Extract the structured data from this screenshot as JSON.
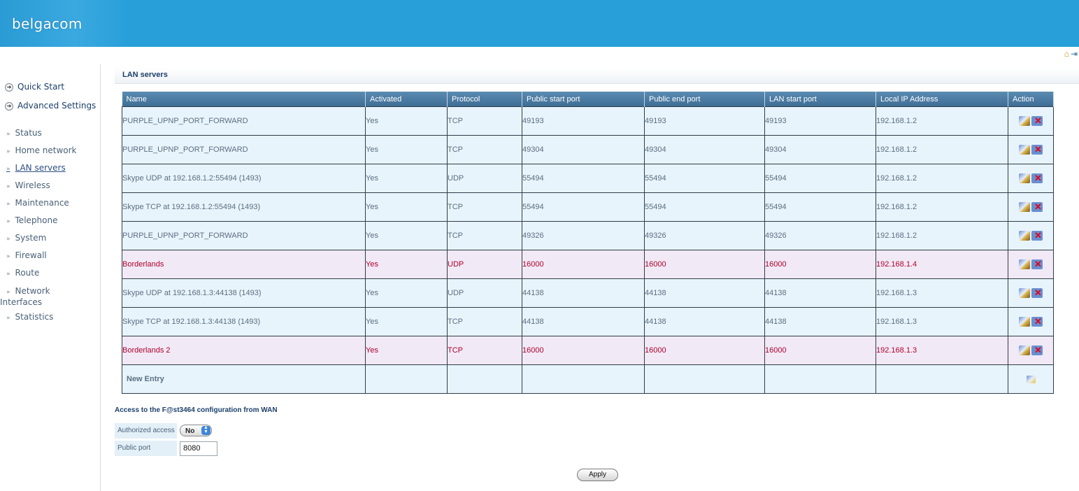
{
  "header": {
    "brand": "belgacom",
    "home_icon": "home-icon",
    "logout_icon": "logout-icon"
  },
  "sidebar": {
    "quick_start": "Quick Start",
    "advanced_settings": "Advanced Settings",
    "items": [
      {
        "label": "Status"
      },
      {
        "label": "Home network"
      },
      {
        "label": "LAN servers"
      },
      {
        "label": "Wireless"
      },
      {
        "label": "Maintenance"
      },
      {
        "label": "Telephone"
      },
      {
        "label": "System"
      },
      {
        "label": "Firewall"
      },
      {
        "label": "Route"
      },
      {
        "label": "Network Interfaces"
      },
      {
        "label": "Statistics"
      }
    ]
  },
  "section": {
    "title": "LAN servers"
  },
  "table": {
    "columns": [
      "Name",
      "Activated",
      "Protocol",
      "Public start port",
      "Public end port",
      "LAN start port",
      "Local IP Address",
      "Action"
    ],
    "rows": [
      {
        "name": "PURPLE_UPNP_PORT_FORWARD",
        "activated": "Yes",
        "protocol": "TCP",
        "public_start": "49193",
        "public_end": "49193",
        "lan_start": "49193",
        "ip": "192.168.1.2"
      },
      {
        "name": "PURPLE_UPNP_PORT_FORWARD",
        "activated": "Yes",
        "protocol": "TCP",
        "public_start": "49304",
        "public_end": "49304",
        "lan_start": "49304",
        "ip": "192.168.1.2"
      },
      {
        "name": "Skype UDP at 192.168.1.2:55494 (1493)",
        "activated": "Yes",
        "protocol": "UDP",
        "public_start": "55494",
        "public_end": "55494",
        "lan_start": "55494",
        "ip": "192.168.1.2"
      },
      {
        "name": "Skype TCP at 192.168.1.2:55494 (1493)",
        "activated": "Yes",
        "protocol": "TCP",
        "public_start": "55494",
        "public_end": "55494",
        "lan_start": "55494",
        "ip": "192.168.1.2"
      },
      {
        "name": "PURPLE_UPNP_PORT_FORWARD",
        "activated": "Yes",
        "protocol": "TCP",
        "public_start": "49326",
        "public_end": "49326",
        "lan_start": "49326",
        "ip": "192.168.1.2"
      },
      {
        "name": "Borderlands",
        "activated": "Yes",
        "protocol": "UDP",
        "public_start": "16000",
        "public_end": "16000",
        "lan_start": "16000",
        "ip": "192.168.1.4"
      },
      {
        "name": "Skype UDP at 192.168.1.3:44138 (1493)",
        "activated": "Yes",
        "protocol": "UDP",
        "public_start": "44138",
        "public_end": "44138",
        "lan_start": "44138",
        "ip": "192.168.1.3"
      },
      {
        "name": "Skype TCP at 192.168.1.3:44138 (1493)",
        "activated": "Yes",
        "protocol": "TCP",
        "public_start": "44138",
        "public_end": "44138",
        "lan_start": "44138",
        "ip": "192.168.1.3"
      },
      {
        "name": "Borderlands 2",
        "activated": "Yes",
        "protocol": "TCP",
        "public_start": "16000",
        "public_end": "16000",
        "lan_start": "16000",
        "ip": "192.168.1.3"
      }
    ],
    "new_entry": "New Entry",
    "icons": {
      "edit": "edit-icon",
      "delete": "delete-icon",
      "new": "new-entry-icon"
    },
    "highlight_color": "#b0002e"
  },
  "access": {
    "title": "Access to the F@st3464 configuration from WAN",
    "authorized_label": "Authorized access",
    "authorized_value": "No",
    "port_label": "Public port",
    "port_value": "8080",
    "apply_label": "Apply"
  }
}
